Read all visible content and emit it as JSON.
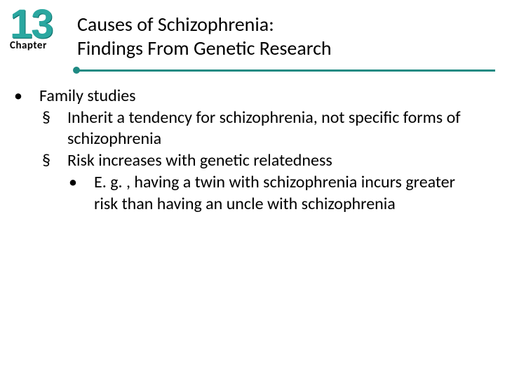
{
  "chapter": {
    "number": "13",
    "label": "Chapter"
  },
  "title": {
    "line1": "Causes of Schizophrenia:",
    "line2": "Findings From Genetic Research"
  },
  "colors": {
    "accent": "#1f8a83",
    "number_fill": "#2aa7a0",
    "text": "#000000",
    "background": "#ffffff"
  },
  "typography": {
    "title_fontsize_pt": 21,
    "body_fontsize_pt": 18,
    "number_fontsize_pt": 44
  },
  "bullets": {
    "l1": {
      "marker": "•",
      "text": "Family studies",
      "children": [
        {
          "marker": "§",
          "text": "Inherit a tendency for schizophrenia, not specific forms of schizophrenia"
        },
        {
          "marker": "§",
          "text": "Risk increases with genetic relatedness",
          "children": [
            {
              "marker": "•",
              "text": "E. g. , having a twin with schizophrenia incurs greater risk than having an uncle  with schizophrenia"
            }
          ]
        }
      ]
    }
  }
}
